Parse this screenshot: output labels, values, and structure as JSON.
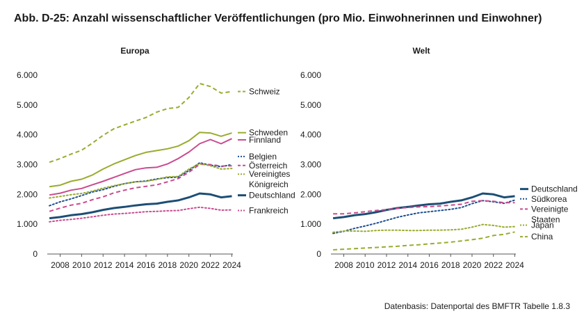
{
  "figure_title": "Abb. D-25: Anzahl wissenschaftlicher Veröffentlichungen (pro Mio. Einwohnerinnen und Einwohner)",
  "source": "Datenbasis: Datenportal des BMFTR Tabelle 1.8.3",
  "chart_data": [
    {
      "type": "line",
      "title": "Europa",
      "xlabel": "",
      "ylabel": "",
      "x": [
        2007,
        2008,
        2009,
        2010,
        2011,
        2012,
        2013,
        2014,
        2015,
        2016,
        2017,
        2018,
        2019,
        2020,
        2021,
        2022,
        2023,
        2024
      ],
      "xticks": [
        "2008",
        "2010",
        "2012",
        "2014",
        "2016",
        "2018",
        "2020",
        "2022",
        "2024"
      ],
      "ylim": [
        0,
        6000
      ],
      "yticks": [
        "0",
        "1.000",
        "2.000",
        "3.000",
        "4.000",
        "5.000",
        "6.000"
      ],
      "grid": false,
      "legend": "right, direct labels",
      "series": [
        {
          "name": "Schweiz",
          "color": "#9aab2e",
          "dash": "dashed",
          "width": 2,
          "values": [
            3080,
            3200,
            3350,
            3480,
            3720,
            3980,
            4200,
            4330,
            4460,
            4580,
            4760,
            4880,
            4920,
            5250,
            5720,
            5620,
            5400,
            5450
          ],
          "label_y": 5450
        },
        {
          "name": "Schweden",
          "color": "#9aab2e",
          "dash": "solid",
          "width": 2,
          "values": [
            2260,
            2310,
            2440,
            2510,
            2650,
            2850,
            3020,
            3160,
            3300,
            3410,
            3470,
            3530,
            3620,
            3800,
            4080,
            4060,
            3950,
            4060
          ],
          "label_y": 4070
        },
        {
          "name": "Finnland",
          "color": "#c84b8e",
          "dash": "solid",
          "width": 2,
          "values": [
            1980,
            2040,
            2140,
            2200,
            2320,
            2440,
            2570,
            2700,
            2830,
            2890,
            2910,
            3020,
            3200,
            3420,
            3700,
            3840,
            3700,
            3870
          ],
          "label_y": 3830
        },
        {
          "name": "Belgien",
          "color": "#1d4f91",
          "dash": "dotted",
          "width": 2,
          "values": [
            1620,
            1750,
            1850,
            1960,
            2080,
            2160,
            2270,
            2360,
            2420,
            2450,
            2520,
            2560,
            2580,
            2800,
            3060,
            2980,
            2930,
            3000
          ],
          "label_y": 3270
        },
        {
          "name": "Österreich",
          "color": "#c84b8e",
          "dash": "dashed",
          "width": 2,
          "values": [
            1430,
            1540,
            1640,
            1700,
            1820,
            1920,
            2050,
            2140,
            2220,
            2270,
            2320,
            2420,
            2530,
            2740,
            3010,
            3000,
            2950,
            2960
          ],
          "label_y": 2970
        },
        {
          "name": "Vereinigtes Königreich",
          "color": "#9aab2e",
          "dash": "dotted",
          "width": 2,
          "values": [
            1880,
            1930,
            1990,
            2030,
            2110,
            2210,
            2290,
            2360,
            2420,
            2440,
            2500,
            2590,
            2600,
            2850,
            3030,
            2960,
            2850,
            2870
          ],
          "label_y": 2680
        },
        {
          "name": "Deutschland",
          "color": "#1d4e75",
          "dash": "solid",
          "width": 3,
          "values": [
            1200,
            1240,
            1300,
            1340,
            1400,
            1480,
            1540,
            1580,
            1630,
            1670,
            1690,
            1750,
            1800,
            1900,
            2030,
            2000,
            1900,
            1940
          ],
          "label_y": 1970
        },
        {
          "name": "Frankreich",
          "color": "#c84b8e",
          "dash": "dotted",
          "width": 2,
          "values": [
            1080,
            1130,
            1160,
            1200,
            1250,
            1300,
            1340,
            1360,
            1390,
            1420,
            1430,
            1450,
            1460,
            1520,
            1570,
            1530,
            1470,
            1480
          ],
          "label_y": 1460
        }
      ]
    },
    {
      "type": "line",
      "title": "Welt",
      "xlabel": "",
      "ylabel": "",
      "x": [
        2007,
        2008,
        2009,
        2010,
        2011,
        2012,
        2013,
        2014,
        2015,
        2016,
        2017,
        2018,
        2019,
        2020,
        2021,
        2022,
        2023,
        2024
      ],
      "xticks": [
        "2008",
        "2010",
        "2012",
        "2014",
        "2016",
        "2018",
        "2020",
        "2022",
        "2024"
      ],
      "ylim": [
        0,
        6000
      ],
      "yticks": [
        "0",
        "1.000",
        "2.000",
        "3.000",
        "4.000",
        "5.000",
        "6.000"
      ],
      "grid": false,
      "legend": "right, direct labels",
      "series": [
        {
          "name": "Deutschland",
          "color": "#1d4e75",
          "dash": "solid",
          "width": 3,
          "values": [
            1200,
            1240,
            1300,
            1340,
            1400,
            1480,
            1540,
            1580,
            1630,
            1670,
            1690,
            1750,
            1800,
            1900,
            2030,
            2000,
            1900,
            1940
          ],
          "label_y": 2180
        },
        {
          "name": "Südkorea",
          "color": "#1d4f91",
          "dash": "dotted",
          "width": 2,
          "values": [
            690,
            760,
            860,
            940,
            1030,
            1130,
            1230,
            1310,
            1380,
            1420,
            1460,
            1500,
            1560,
            1690,
            1790,
            1750,
            1700,
            1810
          ],
          "label_y": 1850
        },
        {
          "name": "Vereinigte Staaten",
          "color": "#c84b8e",
          "dash": "dashed",
          "width": 2,
          "values": [
            1350,
            1350,
            1380,
            1420,
            1460,
            1490,
            1530,
            1560,
            1580,
            1590,
            1610,
            1640,
            1670,
            1770,
            1790,
            1770,
            1720,
            1720
          ],
          "label_y": 1510
        },
        {
          "name": "Japan",
          "color": "#9aab2e",
          "dash": "dotted",
          "width": 2,
          "values": [
            730,
            770,
            770,
            760,
            790,
            800,
            800,
            790,
            790,
            800,
            800,
            810,
            830,
            900,
            990,
            960,
            900,
            920
          ],
          "label_y": 970
        },
        {
          "name": "China",
          "color": "#9aab2e",
          "dash": "dashed",
          "width": 2,
          "values": [
            140,
            160,
            180,
            200,
            220,
            240,
            260,
            290,
            310,
            340,
            370,
            400,
            440,
            480,
            530,
            620,
            660,
            740
          ],
          "label_y": 580
        }
      ]
    }
  ]
}
